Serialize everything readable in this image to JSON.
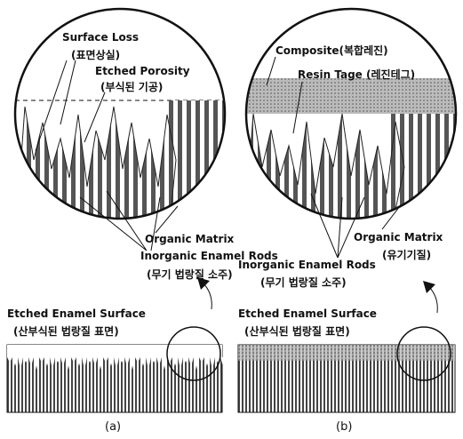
{
  "panel_a": {
    "surface_loss": "Surface Loss",
    "surface_loss_ko": "(표면상실)",
    "etched_porosity": "Etched Porosity",
    "etched_porosity_ko": "(부식된 기공)",
    "organic_matrix": "Organic Matrix",
    "enamel_rods": "Inorganic Enamel Rods",
    "enamel_rods_ko": "(무기 법랑질 소주)",
    "surface": "Etched Enamel Surface",
    "surface_ko": "(산부식된 법랑질 표면)",
    "caption": "(a)"
  },
  "panel_b": {
    "composite": "Composite(복합레진)",
    "resin_tag": "Resin Tage (레진테그)",
    "organic_matrix": "Organic Matrix",
    "organic_matrix_ko": "(유기기질)",
    "enamel_rods": "Inorganic Enamel Rods",
    "enamel_rods_ko": "(무기 법랑질 소주)",
    "surface": "Etched Enamel Surface",
    "surface_ko": "(산부식된 법랑질 표면)",
    "caption": "(b)"
  }
}
